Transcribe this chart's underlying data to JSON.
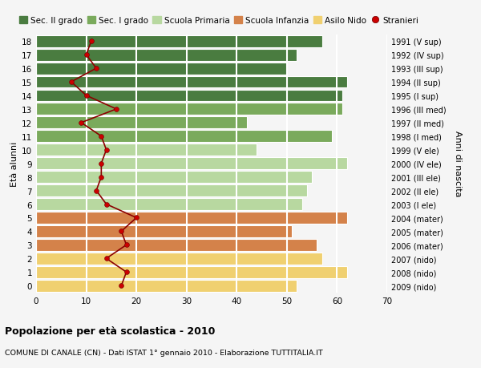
{
  "ages": [
    18,
    17,
    16,
    15,
    14,
    13,
    12,
    11,
    10,
    9,
    8,
    7,
    6,
    5,
    4,
    3,
    2,
    1,
    0
  ],
  "right_labels": [
    "1991 (V sup)",
    "1992 (IV sup)",
    "1993 (III sup)",
    "1994 (II sup)",
    "1995 (I sup)",
    "1996 (III med)",
    "1997 (II med)",
    "1998 (I med)",
    "1999 (V ele)",
    "2000 (IV ele)",
    "2001 (III ele)",
    "2002 (II ele)",
    "2003 (I ele)",
    "2004 (mater)",
    "2005 (mater)",
    "2006 (mater)",
    "2007 (nido)",
    "2008 (nido)",
    "2009 (nido)"
  ],
  "bar_values": [
    57,
    52,
    50,
    62,
    61,
    61,
    42,
    59,
    44,
    62,
    55,
    54,
    53,
    62,
    51,
    56,
    57,
    62,
    52
  ],
  "bar_colors": [
    "#4a7c40",
    "#4a7c40",
    "#4a7c40",
    "#4a7c40",
    "#4a7c40",
    "#7aaa5c",
    "#7aaa5c",
    "#7aaa5c",
    "#b8d8a0",
    "#b8d8a0",
    "#b8d8a0",
    "#b8d8a0",
    "#b8d8a0",
    "#d4824a",
    "#d4824a",
    "#d4824a",
    "#f0d070",
    "#f0d070",
    "#f0d070"
  ],
  "stranieri_values": [
    11,
    10,
    12,
    7,
    10,
    16,
    9,
    13,
    14,
    13,
    13,
    12,
    14,
    20,
    17,
    18,
    14,
    18,
    17
  ],
  "title": "Popolazione per età scolastica - 2010",
  "subtitle": "COMUNE DI CANALE (CN) - Dati ISTAT 1° gennaio 2010 - Elaborazione TUTTITALIA.IT",
  "ylabel_left": "Età alunni",
  "ylabel_right": "Anni di nascita",
  "xlim": [
    0,
    70
  ],
  "xticks": [
    0,
    10,
    20,
    30,
    40,
    50,
    60,
    70
  ],
  "legend_labels": [
    "Sec. II grado",
    "Sec. I grado",
    "Scuola Primaria",
    "Scuola Infanzia",
    "Asilo Nido",
    "Stranieri"
  ],
  "legend_colors": [
    "#4a7c40",
    "#7aaa5c",
    "#b8d8a0",
    "#d4824a",
    "#f0d070",
    "#cc0000"
  ],
  "bar_height": 0.88,
  "bg_color": "#f5f5f5",
  "grid_color": "#ffffff",
  "stranieri_line_color": "#8b0000",
  "stranieri_dot_color": "#cc0000"
}
